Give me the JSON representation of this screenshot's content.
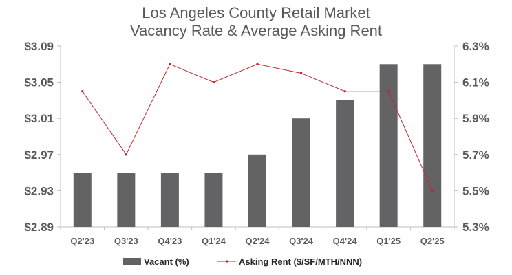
{
  "chart_data": {
    "type": "bar",
    "title": [
      "Los Angeles County Retail Market",
      "Vacancy Rate & Average Asking Rent"
    ],
    "categories": [
      "Q2'23",
      "Q3'23",
      "Q4'23",
      "Q1'24",
      "Q2'24",
      "Q3'24",
      "Q4'24",
      "Q1'25",
      "Q2'25"
    ],
    "series": [
      {
        "name": "Vacant (%)",
        "type": "bar",
        "axis": "left",
        "values": [
          2.95,
          2.95,
          2.95,
          2.95,
          2.97,
          3.01,
          3.03,
          3.07,
          3.07
        ]
      },
      {
        "name": "Asking Rent ($/SF/MTH/NNN)",
        "type": "line",
        "axis": "right",
        "values": [
          6.05,
          5.7,
          6.2,
          6.1,
          6.2,
          6.15,
          6.05,
          6.05,
          5.5
        ]
      }
    ],
    "y_left": {
      "ylim": [
        2.89,
        3.09
      ],
      "ticks": [
        2.89,
        2.93,
        2.97,
        3.01,
        3.05,
        3.09
      ],
      "tick_labels": [
        "$2.89",
        "$2.93",
        "$2.97",
        "$3.01",
        "$3.05",
        "$3.09"
      ]
    },
    "y_right": {
      "ylim": [
        5.3,
        6.3
      ],
      "ticks": [
        5.3,
        5.5,
        5.7,
        5.9,
        6.1,
        6.3
      ],
      "tick_labels": [
        "5.3%",
        "5.5%",
        "5.7%",
        "5.9%",
        "6.1%",
        "6.3%"
      ]
    },
    "legend": "bottom",
    "grid": false,
    "colors": {
      "bar": "#636366",
      "line": "#c0262b",
      "axis": "#bfbfbf",
      "text": "#595959"
    }
  }
}
